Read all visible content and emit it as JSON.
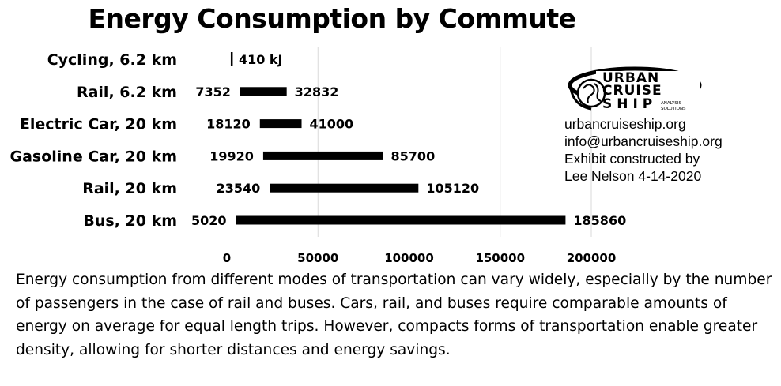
{
  "chart_data": {
    "type": "bar",
    "subtype": "floating-range",
    "title": "Energy Consumption by Commute",
    "categories": [
      "Cycling, 6.2 km",
      "Rail, 6.2 km",
      "Electric Car, 20 km",
      "Gasoline Car, 20 km",
      "Rail, 20 km",
      "Bus, 20 km"
    ],
    "ranges": [
      {
        "low": 410,
        "high": 410,
        "labels": [
          "",
          "410 kJ"
        ]
      },
      {
        "low": 7352,
        "high": 32832,
        "labels": [
          "7352",
          "32832"
        ]
      },
      {
        "low": 18120,
        "high": 41000,
        "labels": [
          "18120",
          "41000"
        ]
      },
      {
        "low": 19920,
        "high": 85700,
        "labels": [
          "19920",
          "85700"
        ]
      },
      {
        "low": 23540,
        "high": 105120,
        "labels": [
          "23540",
          "105120"
        ]
      },
      {
        "low": 5020,
        "high": 185860,
        "labels": [
          "5020",
          "185860"
        ]
      }
    ],
    "xticks": [
      0,
      50000,
      100000,
      150000,
      200000
    ],
    "xlim": [
      0,
      200000
    ],
    "grid": "vertical",
    "bar_color": "#000000"
  },
  "logo": {
    "line1": "URBAN",
    "line2": "CRUISE",
    "line3": "SHIP",
    "tagline1": "ANALYSIS",
    "tagline2": "SOLUTIONS"
  },
  "info": {
    "website": "urbancruiseship.org",
    "email": "info@urbancruiseship.org",
    "credit_line1": "Exhibit constructed by",
    "credit_line2": "Lee Nelson 4-14-2020"
  },
  "caption": "Energy consumption from different modes of transportation can vary widely, especially by the number of passengers in the case of rail and buses. Cars, rail, and buses require comparable amounts of energy on average for equal length trips. However, compacts forms of transportation enable greater density, allowing for shorter distances and energy savings."
}
